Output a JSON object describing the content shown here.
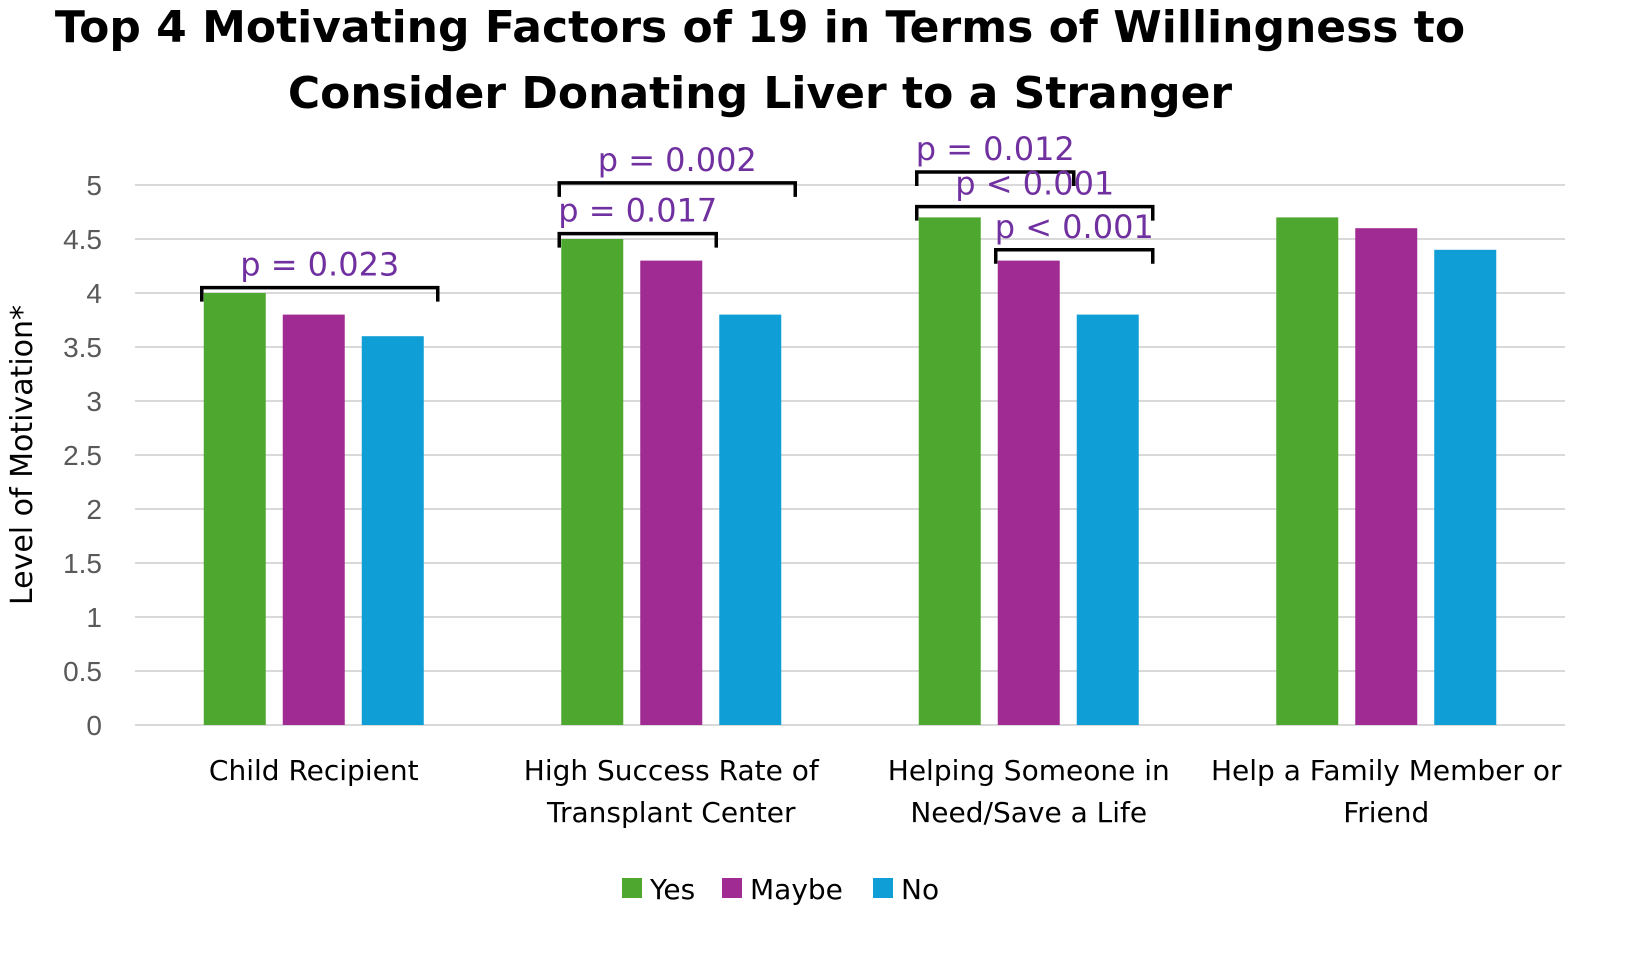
{
  "chart_data": {
    "type": "bar",
    "title_lines": [
      "Top 4 Motivating Factors of 19 in Terms of Willingness to",
      "Consider Donating Liver to a Stranger"
    ],
    "ylabel": "Level of Motivation*",
    "xlabel": "",
    "ylim": [
      0,
      5
    ],
    "yticks": [
      "0",
      "0.5",
      "1",
      "1.5",
      "2",
      "2.5",
      "3",
      "3.5",
      "4",
      "4.5",
      "5"
    ],
    "grid": true,
    "categories": [
      [
        "Child Recipient"
      ],
      [
        "High Success Rate of",
        "Transplant Center"
      ],
      [
        "Helping Someone in",
        "Need/Save a Life"
      ],
      [
        "Help a Family Member or",
        "Friend"
      ]
    ],
    "series": [
      {
        "name": "Yes",
        "color": "#4ea72e",
        "values": [
          4.0,
          4.5,
          4.7,
          4.7
        ]
      },
      {
        "name": "Maybe",
        "color": "#a02b93",
        "values": [
          3.8,
          4.3,
          4.3,
          4.6
        ]
      },
      {
        "name": "No",
        "color": "#0f9ed5",
        "values": [
          3.6,
          3.8,
          3.8,
          4.4
        ]
      }
    ],
    "annotations": [
      {
        "text": "p = 0.023",
        "category": 0,
        "from_series": 0,
        "to_series": 2,
        "level": 4.05
      },
      {
        "text": "p = 0.017",
        "category": 1,
        "from_series": 0,
        "to_series": 1,
        "level": 4.55
      },
      {
        "text": "p = 0.002",
        "category": 1,
        "from_series": 0,
        "to_series": 2,
        "level": 5.02
      },
      {
        "text": "p = 0.012",
        "category": 2,
        "from_series": 0,
        "to_series": 1,
        "level": 5.12
      },
      {
        "text": "p < 0.001",
        "category": 2,
        "from_series": 0,
        "to_series": 2,
        "level": 4.8
      },
      {
        "text": "p < 0.001",
        "category": 2,
        "from_series": 1,
        "to_series": 2,
        "level": 4.4
      }
    ],
    "legend_position": "bottom-center"
  }
}
